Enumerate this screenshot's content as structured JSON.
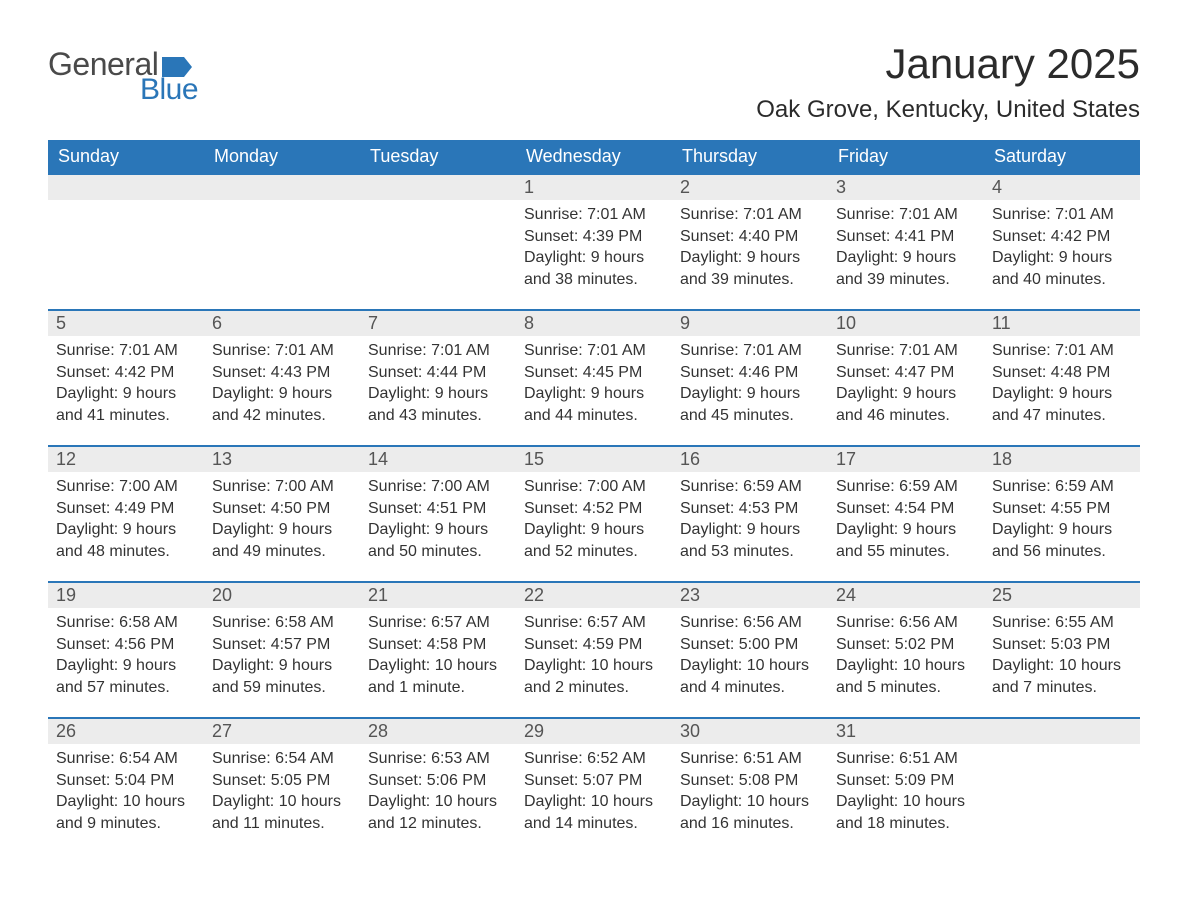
{
  "header": {
    "logo_general": "General",
    "logo_blue": "Blue",
    "month_title": "January 2025",
    "location": "Oak Grove, Kentucky, United States"
  },
  "colors": {
    "header_bg": "#2a76b8",
    "header_text": "#ffffff",
    "daynum_bg": "#ececec",
    "border": "#2a76b8",
    "body_text": "#333333",
    "logo_gray": "#4a4a4a",
    "logo_blue": "#2a76b8"
  },
  "weekdays": [
    "Sunday",
    "Monday",
    "Tuesday",
    "Wednesday",
    "Thursday",
    "Friday",
    "Saturday"
  ],
  "weeks": [
    [
      null,
      null,
      null,
      {
        "n": "1",
        "sunrise": "Sunrise: 7:01 AM",
        "sunset": "Sunset: 4:39 PM",
        "daylight": "Daylight: 9 hours and 38 minutes."
      },
      {
        "n": "2",
        "sunrise": "Sunrise: 7:01 AM",
        "sunset": "Sunset: 4:40 PM",
        "daylight": "Daylight: 9 hours and 39 minutes."
      },
      {
        "n": "3",
        "sunrise": "Sunrise: 7:01 AM",
        "sunset": "Sunset: 4:41 PM",
        "daylight": "Daylight: 9 hours and 39 minutes."
      },
      {
        "n": "4",
        "sunrise": "Sunrise: 7:01 AM",
        "sunset": "Sunset: 4:42 PM",
        "daylight": "Daylight: 9 hours and 40 minutes."
      }
    ],
    [
      {
        "n": "5",
        "sunrise": "Sunrise: 7:01 AM",
        "sunset": "Sunset: 4:42 PM",
        "daylight": "Daylight: 9 hours and 41 minutes."
      },
      {
        "n": "6",
        "sunrise": "Sunrise: 7:01 AM",
        "sunset": "Sunset: 4:43 PM",
        "daylight": "Daylight: 9 hours and 42 minutes."
      },
      {
        "n": "7",
        "sunrise": "Sunrise: 7:01 AM",
        "sunset": "Sunset: 4:44 PM",
        "daylight": "Daylight: 9 hours and 43 minutes."
      },
      {
        "n": "8",
        "sunrise": "Sunrise: 7:01 AM",
        "sunset": "Sunset: 4:45 PM",
        "daylight": "Daylight: 9 hours and 44 minutes."
      },
      {
        "n": "9",
        "sunrise": "Sunrise: 7:01 AM",
        "sunset": "Sunset: 4:46 PM",
        "daylight": "Daylight: 9 hours and 45 minutes."
      },
      {
        "n": "10",
        "sunrise": "Sunrise: 7:01 AM",
        "sunset": "Sunset: 4:47 PM",
        "daylight": "Daylight: 9 hours and 46 minutes."
      },
      {
        "n": "11",
        "sunrise": "Sunrise: 7:01 AM",
        "sunset": "Sunset: 4:48 PM",
        "daylight": "Daylight: 9 hours and 47 minutes."
      }
    ],
    [
      {
        "n": "12",
        "sunrise": "Sunrise: 7:00 AM",
        "sunset": "Sunset: 4:49 PM",
        "daylight": "Daylight: 9 hours and 48 minutes."
      },
      {
        "n": "13",
        "sunrise": "Sunrise: 7:00 AM",
        "sunset": "Sunset: 4:50 PM",
        "daylight": "Daylight: 9 hours and 49 minutes."
      },
      {
        "n": "14",
        "sunrise": "Sunrise: 7:00 AM",
        "sunset": "Sunset: 4:51 PM",
        "daylight": "Daylight: 9 hours and 50 minutes."
      },
      {
        "n": "15",
        "sunrise": "Sunrise: 7:00 AM",
        "sunset": "Sunset: 4:52 PM",
        "daylight": "Daylight: 9 hours and 52 minutes."
      },
      {
        "n": "16",
        "sunrise": "Sunrise: 6:59 AM",
        "sunset": "Sunset: 4:53 PM",
        "daylight": "Daylight: 9 hours and 53 minutes."
      },
      {
        "n": "17",
        "sunrise": "Sunrise: 6:59 AM",
        "sunset": "Sunset: 4:54 PM",
        "daylight": "Daylight: 9 hours and 55 minutes."
      },
      {
        "n": "18",
        "sunrise": "Sunrise: 6:59 AM",
        "sunset": "Sunset: 4:55 PM",
        "daylight": "Daylight: 9 hours and 56 minutes."
      }
    ],
    [
      {
        "n": "19",
        "sunrise": "Sunrise: 6:58 AM",
        "sunset": "Sunset: 4:56 PM",
        "daylight": "Daylight: 9 hours and 57 minutes."
      },
      {
        "n": "20",
        "sunrise": "Sunrise: 6:58 AM",
        "sunset": "Sunset: 4:57 PM",
        "daylight": "Daylight: 9 hours and 59 minutes."
      },
      {
        "n": "21",
        "sunrise": "Sunrise: 6:57 AM",
        "sunset": "Sunset: 4:58 PM",
        "daylight": "Daylight: 10 hours and 1 minute."
      },
      {
        "n": "22",
        "sunrise": "Sunrise: 6:57 AM",
        "sunset": "Sunset: 4:59 PM",
        "daylight": "Daylight: 10 hours and 2 minutes."
      },
      {
        "n": "23",
        "sunrise": "Sunrise: 6:56 AM",
        "sunset": "Sunset: 5:00 PM",
        "daylight": "Daylight: 10 hours and 4 minutes."
      },
      {
        "n": "24",
        "sunrise": "Sunrise: 6:56 AM",
        "sunset": "Sunset: 5:02 PM",
        "daylight": "Daylight: 10 hours and 5 minutes."
      },
      {
        "n": "25",
        "sunrise": "Sunrise: 6:55 AM",
        "sunset": "Sunset: 5:03 PM",
        "daylight": "Daylight: 10 hours and 7 minutes."
      }
    ],
    [
      {
        "n": "26",
        "sunrise": "Sunrise: 6:54 AM",
        "sunset": "Sunset: 5:04 PM",
        "daylight": "Daylight: 10 hours and 9 minutes."
      },
      {
        "n": "27",
        "sunrise": "Sunrise: 6:54 AM",
        "sunset": "Sunset: 5:05 PM",
        "daylight": "Daylight: 10 hours and 11 minutes."
      },
      {
        "n": "28",
        "sunrise": "Sunrise: 6:53 AM",
        "sunset": "Sunset: 5:06 PM",
        "daylight": "Daylight: 10 hours and 12 minutes."
      },
      {
        "n": "29",
        "sunrise": "Sunrise: 6:52 AM",
        "sunset": "Sunset: 5:07 PM",
        "daylight": "Daylight: 10 hours and 14 minutes."
      },
      {
        "n": "30",
        "sunrise": "Sunrise: 6:51 AM",
        "sunset": "Sunset: 5:08 PM",
        "daylight": "Daylight: 10 hours and 16 minutes."
      },
      {
        "n": "31",
        "sunrise": "Sunrise: 6:51 AM",
        "sunset": "Sunset: 5:09 PM",
        "daylight": "Daylight: 10 hours and 18 minutes."
      },
      null
    ]
  ]
}
